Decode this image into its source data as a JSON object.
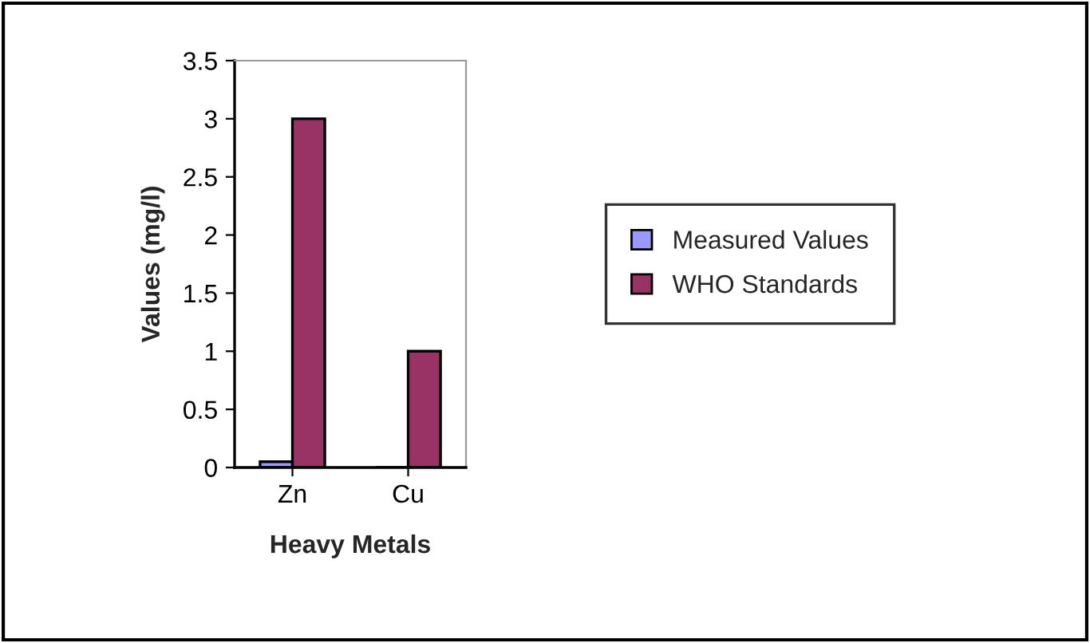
{
  "chart_data": {
    "type": "bar",
    "xlabel": "Heavy Metals",
    "ylabel": "Values (mg/l)",
    "categories": [
      "Zn",
      "Cu"
    ],
    "series": [
      {
        "name": "Measured Values",
        "color": "#9999ff",
        "values": [
          0.05,
          0
        ]
      },
      {
        "name": "WHO Standards",
        "color": "#993366",
        "values": [
          3,
          1
        ]
      }
    ],
    "ylim": [
      0,
      3.5
    ],
    "yticks": [
      0,
      0.5,
      1,
      1.5,
      2,
      2.5,
      3,
      3.5
    ],
    "grid": false,
    "legend": "right"
  }
}
